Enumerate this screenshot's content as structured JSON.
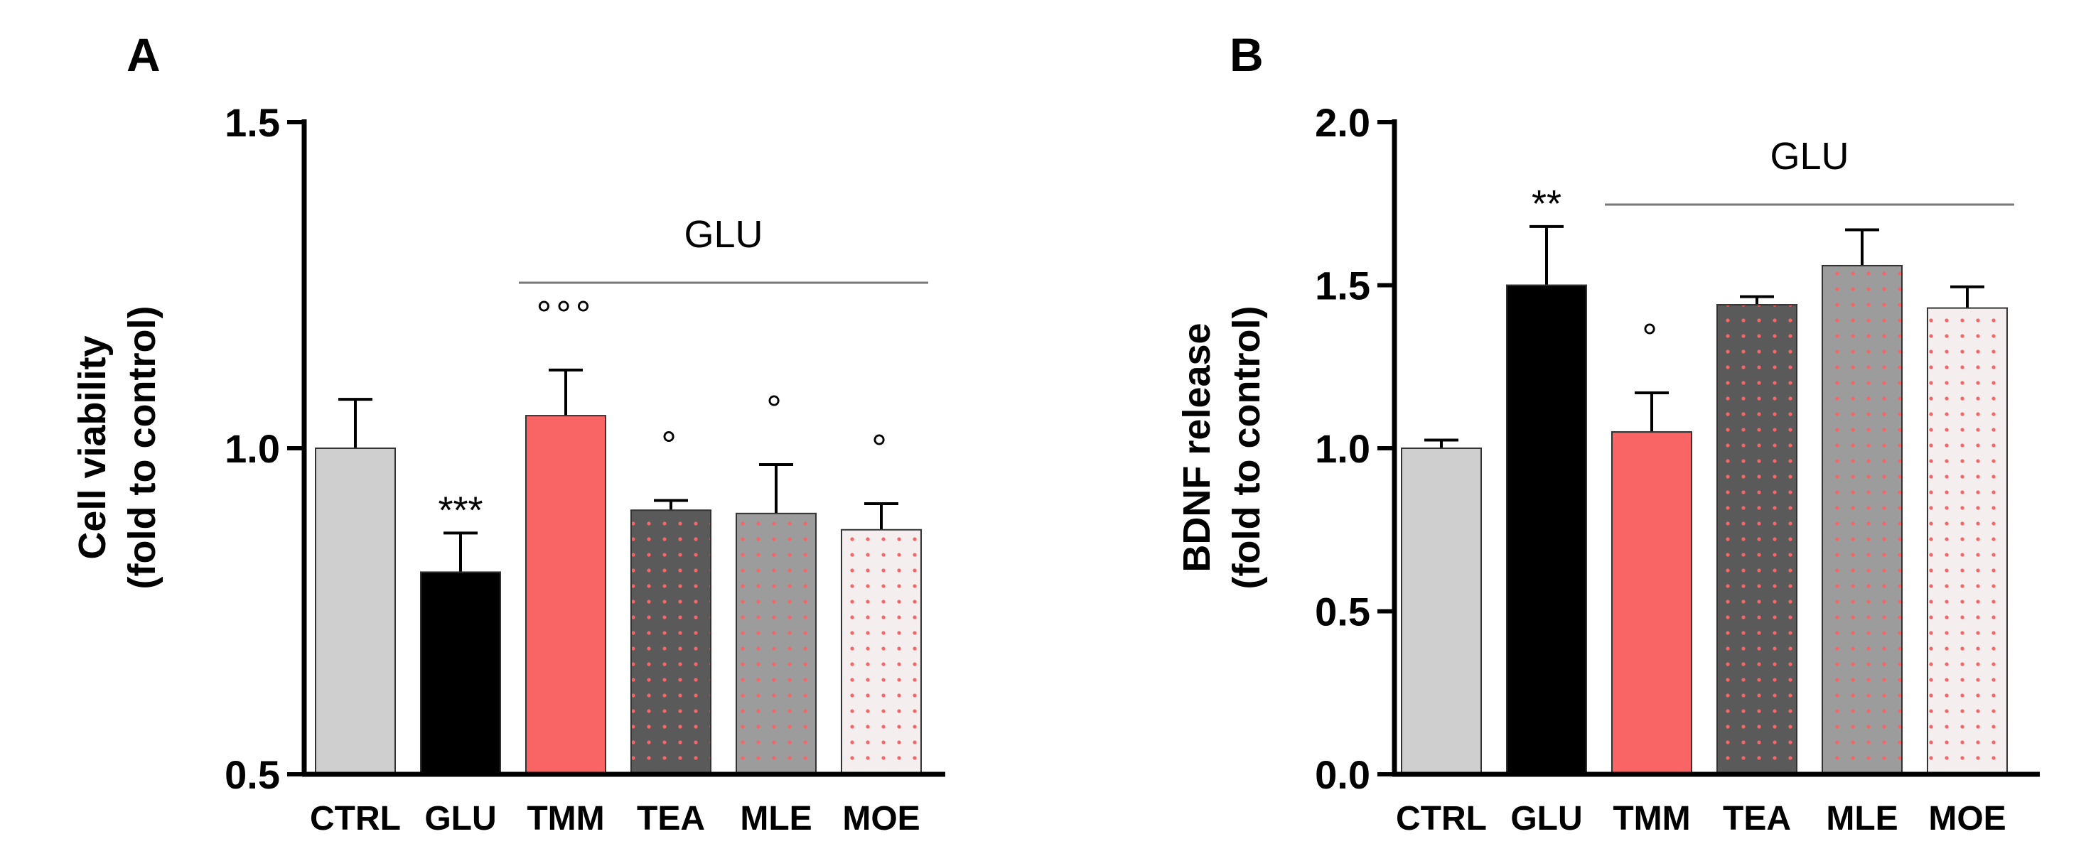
{
  "chart_data": [
    {
      "panel": "A",
      "type": "bar",
      "categories": [
        "CTRL",
        "GLU",
        "TMM",
        "TEA",
        "MLE",
        "MOE"
      ],
      "values": [
        1.0,
        0.81,
        1.05,
        0.905,
        0.9,
        0.875
      ],
      "errors": [
        0.075,
        0.06,
        0.07,
        0.015,
        0.075,
        0.04
      ],
      "annotations": [
        "",
        "***",
        "°°°",
        "°",
        "°",
        "°"
      ],
      "ylabel_line1": "Cell viability",
      "ylabel_line2": "(fold to control)",
      "ylim": [
        0.5,
        1.5
      ],
      "ticks": [
        "0.5",
        "1.0",
        "1.5"
      ],
      "tick_values": [
        0.5,
        1.0,
        1.5
      ],
      "group_label": "GLU",
      "group_span": [
        "TMM",
        "MOE"
      ]
    },
    {
      "panel": "B",
      "type": "bar",
      "categories": [
        "CTRL",
        "GLU",
        "TMM",
        "TEA",
        "MLE",
        "MOE"
      ],
      "values": [
        1.0,
        1.5,
        1.05,
        1.44,
        1.56,
        1.43
      ],
      "errors": [
        0.025,
        0.18,
        0.12,
        0.025,
        0.11,
        0.065
      ],
      "annotations": [
        "",
        "**",
        "°",
        "",
        "",
        ""
      ],
      "ylabel_line1": "BDNF release",
      "ylabel_line2": "(fold to control)",
      "ylim": [
        0.0,
        2.0
      ],
      "ticks": [
        "0.0",
        "0.5",
        "1.0",
        "1.5",
        "2.0"
      ],
      "tick_values": [
        0.0,
        0.5,
        1.0,
        1.5,
        2.0
      ],
      "group_label": "GLU",
      "group_span": [
        "TMM",
        "MOE"
      ]
    }
  ],
  "styles": {
    "CTRL": {
      "fill": "#cfcfcf",
      "dot": ""
    },
    "GLU": {
      "fill": "#000000",
      "dot": ""
    },
    "TMM": {
      "fill": "#f96565",
      "dot": ""
    },
    "TEA": {
      "fill": "#5a5a5a",
      "dot": "#f96565"
    },
    "MLE": {
      "fill": "#9c9c9c",
      "dot": "#f96565"
    },
    "MOE": {
      "fill": "#f4eeee",
      "dot": "#f96565"
    }
  }
}
